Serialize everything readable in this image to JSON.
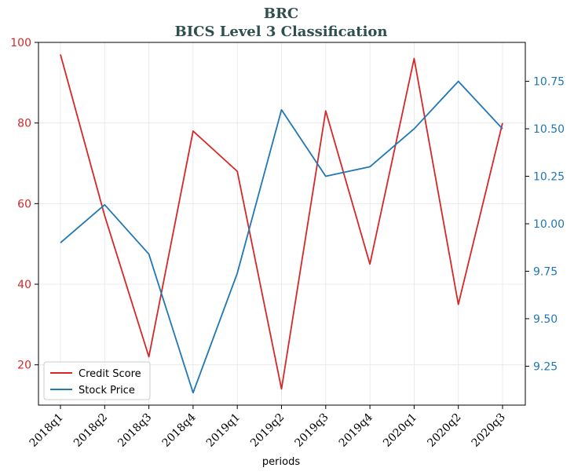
{
  "chart_data": {
    "type": "line",
    "title": "BRC",
    "subtitle": "BICS Level 3 Classification",
    "xlabel": "periods",
    "categories": [
      "2018q1",
      "2018q2",
      "2018q3",
      "2018q4",
      "2019q1",
      "2019q2",
      "2019q3",
      "2019q4",
      "2020q1",
      "2020q2",
      "2020q3"
    ],
    "series": [
      {
        "name": "Credit Score",
        "axis": "left",
        "color": "#d62728",
        "values": [
          97,
          57,
          22,
          78,
          68,
          14,
          83,
          45,
          96,
          35,
          80
        ]
      },
      {
        "name": "Stock Price",
        "axis": "right",
        "color": "#1f77b4",
        "values": [
          9.9,
          10.1,
          9.84,
          9.11,
          9.74,
          10.6,
          10.25,
          10.3,
          10.5,
          10.75,
          10.5
        ]
      }
    ],
    "y_left": {
      "ylim": [
        10,
        100
      ],
      "ticks": [
        20,
        40,
        60,
        80,
        100
      ],
      "color": "#d62728"
    },
    "y_right": {
      "ylim": [
        9.045,
        10.955
      ],
      "ticks": [
        "9.25",
        "9.50",
        "9.75",
        "10.00",
        "10.25",
        "10.50",
        "10.75"
      ],
      "color": "#1f77b4"
    },
    "grid": true,
    "legend": "lower-left"
  }
}
